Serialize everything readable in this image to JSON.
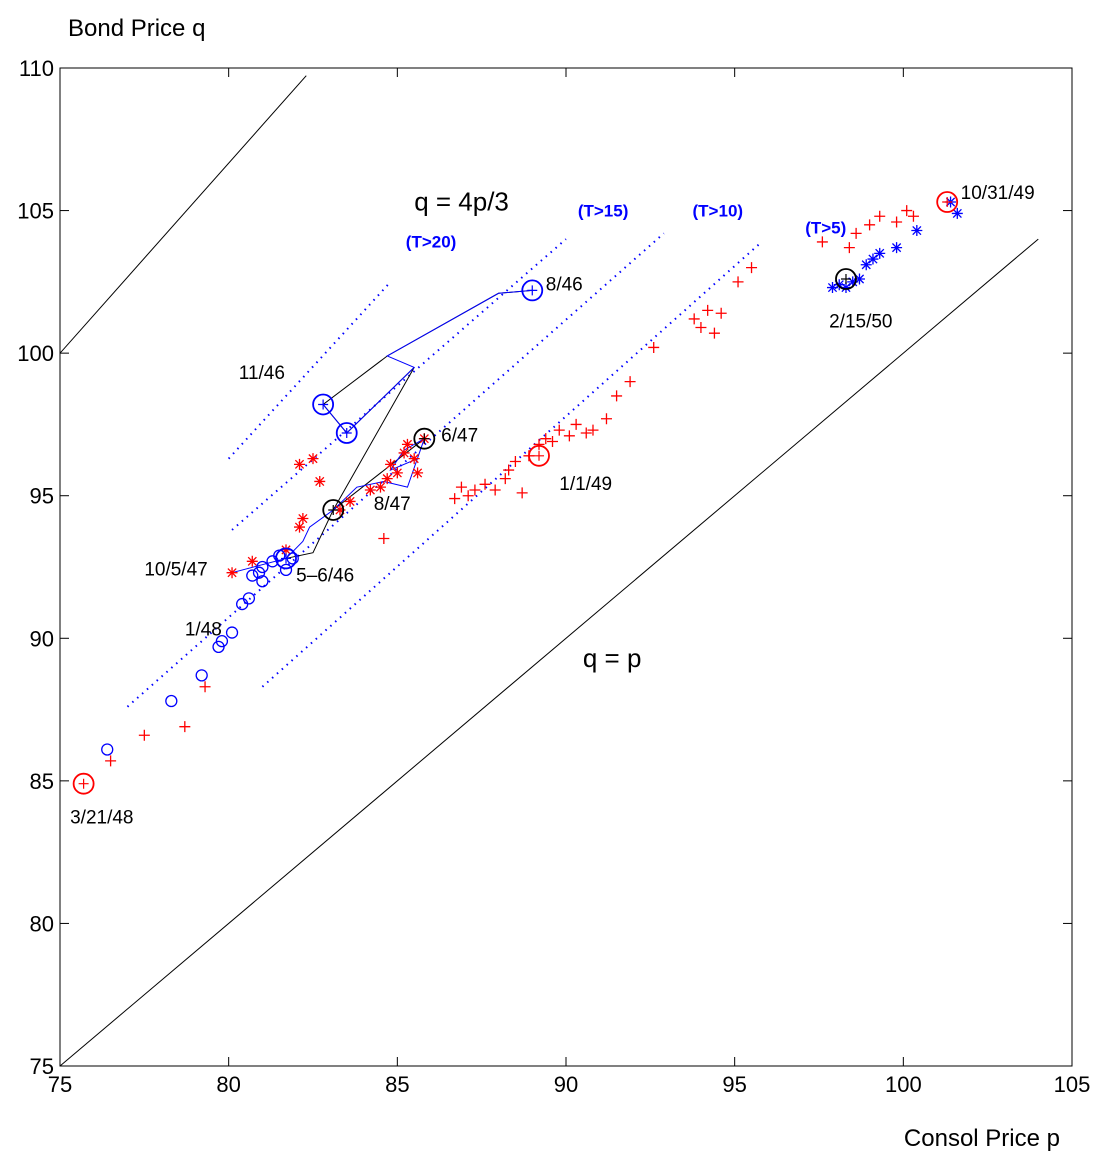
{
  "chart_data": {
    "type": "scatter",
    "ylabel": "Bond Price q",
    "xlabel": "Consol Price p",
    "xlim": [
      75,
      105
    ],
    "ylim": [
      75,
      110
    ],
    "xticks": [
      75,
      80,
      85,
      90,
      95,
      100,
      105
    ],
    "yticks": [
      75,
      80,
      85,
      90,
      95,
      100,
      105,
      110
    ],
    "grid": false,
    "colors": {
      "red": "#ff0000",
      "blue": "#0000ff",
      "black": "#000000"
    },
    "reference_lines": [
      {
        "label": "q = 4p/3",
        "slope": 1.3333,
        "intercept": 0,
        "x_range": [
          75,
          82.3
        ],
        "label_at": [
          85.5,
          105
        ]
      },
      {
        "label": "q = p",
        "slope": 1,
        "intercept": 0,
        "x_range": [
          75,
          104
        ],
        "label_at": [
          90.5,
          89
        ]
      }
    ],
    "maturity_lines": [
      {
        "label": "(T>20)",
        "from": [
          80,
          96.3
        ],
        "to": [
          84.8,
          102.5
        ],
        "label_at": [
          86,
          103.7
        ]
      },
      {
        "label": "(T>15)",
        "from": [
          80.1,
          93.8
        ],
        "to": [
          90,
          104
        ],
        "label_at": [
          91.1,
          104.8
        ]
      },
      {
        "label": "(T>10)",
        "from": [
          77,
          87.6
        ],
        "to": [
          92.9,
          104.2
        ],
        "label_at": [
          94.5,
          104.8
        ]
      },
      {
        "label": "(T>5)",
        "from": [
          81,
          88.3
        ],
        "to": [
          95.8,
          103.9
        ],
        "label_at": [
          97.7,
          104.2
        ]
      }
    ],
    "annotations": [
      {
        "text": "8/46",
        "at": [
          89.4,
          102.2
        ]
      },
      {
        "text": "11/46",
        "at": [
          80.3,
          99.1
        ]
      },
      {
        "text": "6/47",
        "at": [
          86.3,
          96.9
        ]
      },
      {
        "text": "1/1/49",
        "at": [
          89.8,
          95.2
        ]
      },
      {
        "text": "8/47",
        "at": [
          84.3,
          94.5
        ]
      },
      {
        "text": "10/5/47",
        "at": [
          77.5,
          92.2
        ]
      },
      {
        "text": "5–6/46",
        "at": [
          82,
          92
        ]
      },
      {
        "text": "1/48",
        "at": [
          78.7,
          90.1
        ]
      },
      {
        "text": "3/21/48",
        "at": [
          75.3,
          83.5
        ]
      },
      {
        "text": "10/31/49",
        "at": [
          101.7,
          105.4
        ]
      },
      {
        "text": "2/15/50",
        "at": [
          97.8,
          100.9
        ]
      },
      {
        "text": "q = 4p/3",
        "at": [
          85.5,
          105
        ]
      },
      {
        "text": "q = p",
        "at": [
          90.5,
          89
        ]
      }
    ],
    "series": [
      {
        "color": "#ff0000",
        "marker": "plus",
        "points": [
          [
            76.5,
            85.7
          ],
          [
            77.5,
            86.6
          ],
          [
            78.7,
            86.9
          ],
          [
            79.3,
            88.3
          ],
          [
            84.6,
            93.5
          ],
          [
            86.7,
            94.9
          ],
          [
            86.9,
            95.3
          ],
          [
            87.1,
            95.0
          ],
          [
            87.3,
            95.2
          ],
          [
            87.6,
            95.4
          ],
          [
            87.9,
            95.2
          ],
          [
            88.2,
            95.6
          ],
          [
            88.3,
            95.9
          ],
          [
            88.5,
            96.2
          ],
          [
            88.7,
            95.1
          ],
          [
            88.9,
            96.4
          ],
          [
            89.2,
            96.8
          ],
          [
            89.4,
            97.0
          ],
          [
            89.6,
            96.9
          ],
          [
            89.8,
            97.3
          ],
          [
            90.1,
            97.1
          ],
          [
            90.3,
            97.5
          ],
          [
            90.6,
            97.2
          ],
          [
            90.8,
            97.3
          ],
          [
            91.2,
            97.7
          ],
          [
            91.5,
            98.5
          ],
          [
            91.9,
            99.0
          ],
          [
            92.6,
            100.2
          ],
          [
            93.8,
            101.2
          ],
          [
            94.0,
            100.9
          ],
          [
            94.2,
            101.5
          ],
          [
            94.4,
            100.7
          ],
          [
            94.6,
            101.4
          ],
          [
            95.1,
            102.5
          ],
          [
            95.5,
            103.0
          ],
          [
            97.6,
            103.9
          ],
          [
            98.4,
            103.7
          ],
          [
            98.6,
            104.2
          ],
          [
            99.0,
            104.5
          ],
          [
            99.3,
            104.8
          ],
          [
            99.8,
            104.6
          ],
          [
            100.1,
            105.0
          ],
          [
            100.3,
            104.8
          ]
        ]
      },
      {
        "color": "#ff0000",
        "marker": "star",
        "points": [
          [
            80.1,
            92.3
          ],
          [
            80.7,
            92.7
          ],
          [
            81.7,
            93.1
          ],
          [
            82.1,
            93.9
          ],
          [
            82.2,
            94.2
          ],
          [
            82.1,
            96.1
          ],
          [
            82.5,
            96.3
          ],
          [
            82.7,
            95.5
          ],
          [
            83.3,
            94.5
          ],
          [
            83.6,
            94.8
          ],
          [
            84.2,
            95.2
          ],
          [
            84.5,
            95.3
          ],
          [
            84.7,
            95.6
          ],
          [
            84.8,
            96.1
          ],
          [
            85.0,
            95.8
          ],
          [
            85.2,
            96.5
          ],
          [
            85.3,
            96.8
          ],
          [
            85.5,
            96.3
          ],
          [
            85.6,
            95.8
          ],
          [
            85.8,
            97.0
          ]
        ]
      },
      {
        "color": "#0000ff",
        "marker": "circle",
        "points": [
          [
            76.4,
            86.1
          ],
          [
            78.3,
            87.8
          ],
          [
            79.2,
            88.7
          ],
          [
            79.7,
            89.7
          ],
          [
            79.8,
            89.9
          ],
          [
            80.1,
            90.2
          ],
          [
            80.4,
            91.2
          ],
          [
            80.6,
            91.4
          ],
          [
            80.7,
            92.2
          ],
          [
            80.9,
            92.3
          ],
          [
            81.0,
            92.5
          ],
          [
            81.0,
            92.0
          ],
          [
            81.3,
            92.7
          ],
          [
            81.5,
            92.9
          ],
          [
            81.7,
            92.4
          ],
          [
            81.9,
            92.8
          ]
        ]
      },
      {
        "color": "#0000ff",
        "marker": "star",
        "points": [
          [
            97.9,
            102.3
          ],
          [
            98.1,
            102.4
          ],
          [
            98.3,
            102.3
          ],
          [
            98.5,
            102.5
          ],
          [
            98.7,
            102.6
          ],
          [
            98.9,
            103.1
          ],
          [
            99.1,
            103.3
          ],
          [
            99.3,
            103.5
          ],
          [
            99.8,
            103.7
          ],
          [
            100.4,
            104.3
          ],
          [
            101.4,
            105.3
          ],
          [
            101.6,
            104.9
          ]
        ]
      }
    ],
    "paths": [
      {
        "color": "#000000",
        "points": [
          [
            89.0,
            102.2
          ],
          [
            88.0,
            102.1
          ],
          [
            84.7,
            99.9
          ],
          [
            82.8,
            98.2
          ],
          [
            83.5,
            97.2
          ]
        ]
      },
      {
        "color": "#000000",
        "points": [
          [
            83.5,
            97.2
          ],
          [
            85.5,
            99.5
          ],
          [
            83.1,
            94.5
          ],
          [
            85.8,
            97.0
          ]
        ]
      },
      {
        "color": "#000000",
        "points": [
          [
            81.7,
            92.8
          ],
          [
            82.5,
            93.0
          ],
          [
            83.1,
            94.5
          ]
        ]
      },
      {
        "color": "#0000ff",
        "points": [
          [
            80.1,
            92.3
          ],
          [
            81.7,
            92.8
          ],
          [
            82.2,
            93.4
          ],
          [
            82.4,
            93.9
          ],
          [
            83.1,
            94.5
          ],
          [
            83.8,
            95.3
          ],
          [
            84.6,
            95.5
          ],
          [
            85.3,
            95.3
          ],
          [
            85.8,
            97.0
          ],
          [
            85.2,
            96.6
          ],
          [
            84.8,
            95.9
          ],
          [
            85.6,
            96.3
          ]
        ]
      },
      {
        "color": "#0000ff",
        "points": [
          [
            89.0,
            102.2
          ],
          [
            88.0,
            102.1
          ],
          [
            84.7,
            99.9
          ],
          [
            85.5,
            99.5
          ],
          [
            83.5,
            97.2
          ],
          [
            82.8,
            98.2
          ]
        ]
      }
    ],
    "highlights": [
      {
        "at": [
          75.7,
          84.9
        ],
        "color": "#ff0000",
        "r": 10
      },
      {
        "at": [
          89.2,
          96.4
        ],
        "color": "#ff0000",
        "r": 10
      },
      {
        "at": [
          101.3,
          105.3
        ],
        "color": "#ff0000",
        "r": 10
      },
      {
        "at": [
          89.0,
          102.2
        ],
        "color": "#0000ff",
        "r": 10
      },
      {
        "at": [
          82.8,
          98.2
        ],
        "color": "#0000ff",
        "r": 10
      },
      {
        "at": [
          83.5,
          97.2
        ],
        "color": "#0000ff",
        "r": 10
      },
      {
        "at": [
          81.7,
          92.8
        ],
        "color": "#0000ff",
        "r": 10
      },
      {
        "at": [
          85.8,
          97.0
        ],
        "color": "#000000",
        "r": 10
      },
      {
        "at": [
          83.1,
          94.5
        ],
        "color": "#000000",
        "r": 10
      },
      {
        "at": [
          98.3,
          102.6
        ],
        "color": "#000000",
        "r": 10
      }
    ]
  }
}
